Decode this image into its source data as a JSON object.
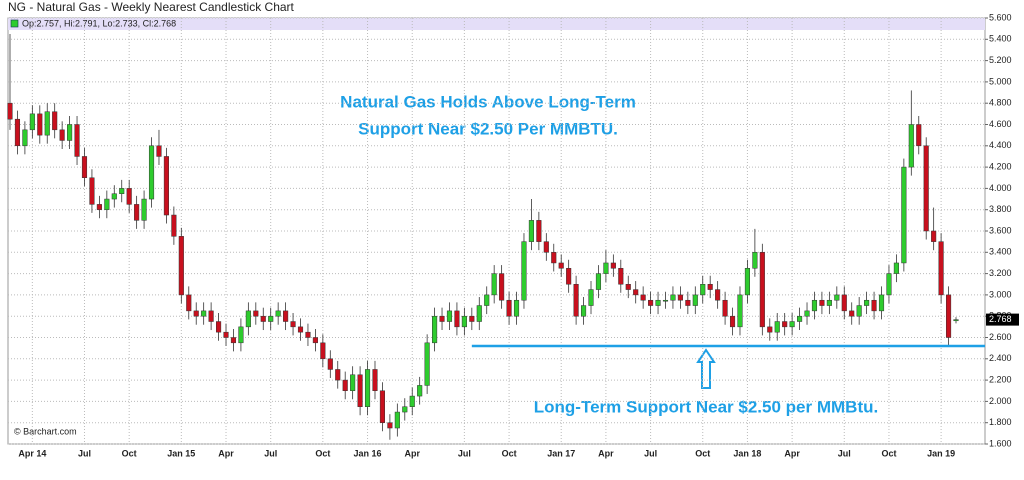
{
  "chart_data": {
    "type": "candlestick",
    "title": "NG - Natural Gas - Weekly Nearest Candlestick Chart",
    "legend_text": "Op:2.757, Hi:2.791, Lo:2.733, Cl:2.768",
    "credit": "© Barchart.com",
    "annotations": [
      "Natural Gas Holds Above Long-Term",
      "Support Near $2.50 Per MMBTU.",
      "Long-Term Support Near $2.50 per MMBtu."
    ],
    "support_line": {
      "y": 2.52,
      "x_start": 62
    },
    "up_color": "#2ecc2e",
    "down_color": "#c8101e",
    "ylim": [
      1.6,
      5.6
    ],
    "yticks": [
      {
        "value": 1.6,
        "label": "1.600"
      },
      {
        "value": 1.8,
        "label": "1.800"
      },
      {
        "value": 2.0,
        "label": "2.000"
      },
      {
        "value": 2.2,
        "label": "2.200"
      },
      {
        "value": 2.4,
        "label": "2.400"
      },
      {
        "value": 2.6,
        "label": "2.600"
      },
      {
        "value": 2.8,
        "label": "2.800"
      },
      {
        "value": 3.0,
        "label": "3.000"
      },
      {
        "value": 3.2,
        "label": "3.200"
      },
      {
        "value": 3.4,
        "label": "3.400"
      },
      {
        "value": 3.6,
        "label": "3.600"
      },
      {
        "value": 3.8,
        "label": "3.800"
      },
      {
        "value": 4.0,
        "label": "4.000"
      },
      {
        "value": 4.2,
        "label": "4.200"
      },
      {
        "value": 4.4,
        "label": "4.400"
      },
      {
        "value": 4.6,
        "label": "4.600"
      },
      {
        "value": 4.8,
        "label": "4.800"
      },
      {
        "value": 5.0,
        "label": "5.000"
      },
      {
        "value": 5.2,
        "label": "5.200"
      },
      {
        "value": 5.4,
        "label": "5.400"
      },
      {
        "value": 5.6,
        "label": "5.600"
      }
    ],
    "grid": true,
    "categories": [
      null,
      null,
      null,
      "Apr 14",
      null,
      null,
      null,
      null,
      null,
      null,
      "Jul",
      null,
      null,
      null,
      null,
      null,
      "Oct",
      null,
      null,
      null,
      null,
      null,
      null,
      "Jan 15",
      null,
      null,
      null,
      null,
      null,
      "Apr",
      null,
      null,
      null,
      null,
      null,
      "Jul",
      null,
      null,
      null,
      null,
      null,
      null,
      "Oct",
      null,
      null,
      null,
      null,
      null,
      "Jan 16",
      null,
      null,
      null,
      null,
      null,
      "Apr",
      null,
      null,
      null,
      null,
      null,
      null,
      "Jul",
      null,
      null,
      null,
      null,
      null,
      "Oct",
      null,
      null,
      null,
      null,
      null,
      null,
      "Jan 17",
      null,
      null,
      null,
      null,
      null,
      "Apr",
      null,
      null,
      null,
      null,
      null,
      "Jul",
      null,
      null,
      null,
      null,
      null,
      null,
      "Oct",
      null,
      null,
      null,
      null,
      null,
      "Jan 18",
      null,
      null,
      null,
      null,
      null,
      "Apr",
      null,
      null,
      null,
      null,
      null,
      null,
      "Jul",
      null,
      null,
      null,
      null,
      null,
      "Oct",
      null,
      null,
      null,
      null,
      null,
      null,
      "Jan 19",
      null,
      null
    ],
    "open": [
      4.8,
      4.65,
      4.4,
      4.55,
      4.7,
      4.5,
      4.72,
      4.55,
      4.45,
      4.6,
      4.3,
      4.1,
      3.85,
      3.8,
      3.9,
      3.95,
      4.0,
      3.85,
      3.7,
      3.9,
      4.4,
      4.3,
      3.75,
      3.55,
      3.0,
      2.85,
      2.8,
      2.85,
      2.75,
      2.65,
      2.6,
      2.55,
      2.7,
      2.85,
      2.8,
      2.75,
      2.8,
      2.85,
      2.75,
      2.7,
      2.65,
      2.6,
      2.55,
      2.4,
      2.3,
      2.2,
      2.1,
      2.25,
      1.95,
      2.3,
      2.1,
      1.8,
      1.75,
      1.9,
      1.95,
      2.05,
      2.15,
      2.55,
      2.8,
      2.75,
      2.85,
      2.7,
      2.8,
      2.75,
      2.9,
      3.0,
      3.2,
      2.95,
      2.8,
      2.95,
      3.5,
      3.7,
      3.5,
      3.4,
      3.3,
      3.25,
      3.1,
      2.8,
      2.9,
      3.05,
      3.2,
      3.3,
      3.25,
      3.1,
      3.05,
      3.0,
      2.95,
      2.9,
      2.95,
      2.95,
      3.0,
      2.95,
      2.9,
      3.0,
      3.1,
      3.05,
      2.95,
      2.8,
      2.7,
      3.0,
      3.25,
      3.4,
      2.7,
      2.65,
      2.75,
      2.7,
      2.75,
      2.8,
      2.85,
      2.95,
      2.9,
      2.95,
      3.0,
      2.85,
      2.8,
      2.9,
      2.95,
      2.85,
      3.0,
      3.2,
      3.3,
      4.2,
      4.6,
      4.4,
      3.6,
      3.5,
      3.0,
      2.757
    ],
    "high": [
      5.45,
      4.73,
      4.63,
      4.78,
      4.78,
      4.8,
      4.8,
      4.63,
      4.68,
      4.68,
      4.38,
      4.18,
      3.93,
      3.98,
      4.03,
      4.08,
      4.08,
      3.93,
      3.98,
      4.48,
      4.55,
      4.38,
      3.83,
      3.63,
      3.08,
      2.93,
      2.93,
      2.93,
      2.83,
      2.73,
      2.68,
      2.78,
      2.93,
      2.93,
      2.88,
      2.88,
      2.93,
      2.93,
      2.83,
      2.78,
      2.73,
      2.68,
      2.63,
      2.48,
      2.38,
      2.28,
      2.33,
      2.33,
      2.38,
      2.38,
      2.18,
      1.88,
      1.98,
      2.03,
      2.13,
      2.23,
      2.63,
      2.88,
      2.88,
      2.93,
      2.93,
      2.88,
      2.88,
      2.98,
      3.08,
      3.28,
      3.28,
      3.03,
      3.03,
      3.58,
      3.9,
      3.78,
      3.58,
      3.48,
      3.38,
      3.33,
      3.18,
      2.98,
      3.13,
      3.28,
      3.42,
      3.38,
      3.33,
      3.18,
      3.13,
      3.08,
      3.03,
      3.03,
      3.03,
      3.08,
      3.08,
      3.03,
      3.08,
      3.18,
      3.18,
      3.13,
      3.03,
      2.88,
      3.08,
      3.33,
      3.62,
      3.48,
      2.78,
      2.83,
      2.83,
      2.83,
      2.88,
      2.93,
      3.03,
      3.03,
      3.03,
      3.08,
      3.08,
      2.93,
      2.98,
      3.03,
      3.03,
      3.08,
      3.28,
      3.38,
      4.28,
      4.92,
      4.68,
      4.48,
      3.82,
      3.58,
      3.08,
      2.791
    ],
    "low": [
      4.55,
      4.32,
      4.32,
      4.47,
      4.42,
      4.42,
      4.47,
      4.37,
      4.37,
      4.22,
      4.02,
      3.77,
      3.72,
      3.72,
      3.82,
      3.87,
      3.77,
      3.62,
      3.62,
      3.82,
      4.22,
      3.67,
      3.47,
      2.92,
      2.77,
      2.72,
      2.72,
      2.67,
      2.57,
      2.52,
      2.47,
      2.47,
      2.62,
      2.72,
      2.67,
      2.67,
      2.72,
      2.67,
      2.62,
      2.57,
      2.52,
      2.47,
      2.32,
      2.22,
      2.12,
      2.02,
      2.02,
      1.87,
      1.87,
      2.02,
      1.72,
      1.64,
      1.67,
      1.82,
      1.87,
      1.97,
      2.07,
      2.47,
      2.67,
      2.67,
      2.62,
      2.62,
      2.67,
      2.67,
      2.82,
      2.92,
      2.87,
      2.72,
      2.72,
      2.87,
      3.42,
      3.42,
      3.32,
      3.22,
      3.17,
      3.02,
      2.72,
      2.72,
      2.82,
      2.97,
      3.12,
      3.17,
      3.02,
      2.97,
      2.92,
      2.87,
      2.82,
      2.82,
      2.87,
      2.87,
      2.87,
      2.82,
      2.82,
      2.92,
      2.97,
      2.87,
      2.72,
      2.62,
      2.62,
      2.92,
      3.17,
      2.62,
      2.57,
      2.57,
      2.62,
      2.62,
      2.67,
      2.72,
      2.77,
      2.82,
      2.82,
      2.87,
      2.77,
      2.72,
      2.72,
      2.82,
      2.77,
      2.77,
      2.92,
      3.12,
      3.22,
      4.12,
      4.32,
      3.52,
      3.42,
      2.92,
      2.52,
      2.733
    ],
    "close": [
      4.65,
      4.4,
      4.55,
      4.7,
      4.5,
      4.72,
      4.55,
      4.45,
      4.6,
      4.3,
      4.1,
      3.85,
      3.8,
      3.9,
      3.95,
      4.0,
      3.85,
      3.7,
      3.9,
      4.4,
      4.3,
      3.75,
      3.55,
      3.0,
      2.85,
      2.8,
      2.85,
      2.75,
      2.65,
      2.6,
      2.55,
      2.7,
      2.85,
      2.8,
      2.75,
      2.8,
      2.85,
      2.75,
      2.7,
      2.65,
      2.6,
      2.55,
      2.4,
      2.3,
      2.2,
      2.1,
      2.25,
      1.95,
      2.3,
      2.1,
      1.8,
      1.75,
      1.9,
      1.95,
      2.05,
      2.15,
      2.55,
      2.8,
      2.75,
      2.85,
      2.7,
      2.8,
      2.75,
      2.9,
      3.0,
      3.2,
      2.95,
      2.8,
      2.95,
      3.5,
      3.7,
      3.5,
      3.4,
      3.3,
      3.25,
      3.1,
      2.8,
      2.9,
      3.05,
      3.2,
      3.3,
      3.25,
      3.1,
      3.05,
      3.0,
      2.95,
      2.9,
      2.95,
      2.95,
      3.0,
      2.95,
      2.9,
      3.0,
      3.1,
      3.05,
      2.95,
      2.8,
      2.7,
      3.0,
      3.25,
      3.4,
      2.7,
      2.65,
      2.75,
      2.7,
      2.75,
      2.8,
      2.85,
      2.95,
      2.9,
      2.95,
      3.0,
      2.85,
      2.8,
      2.9,
      2.95,
      2.85,
      3.0,
      3.2,
      3.3,
      4.2,
      4.6,
      4.4,
      3.6,
      3.5,
      3.0,
      2.6,
      2.768
    ]
  }
}
